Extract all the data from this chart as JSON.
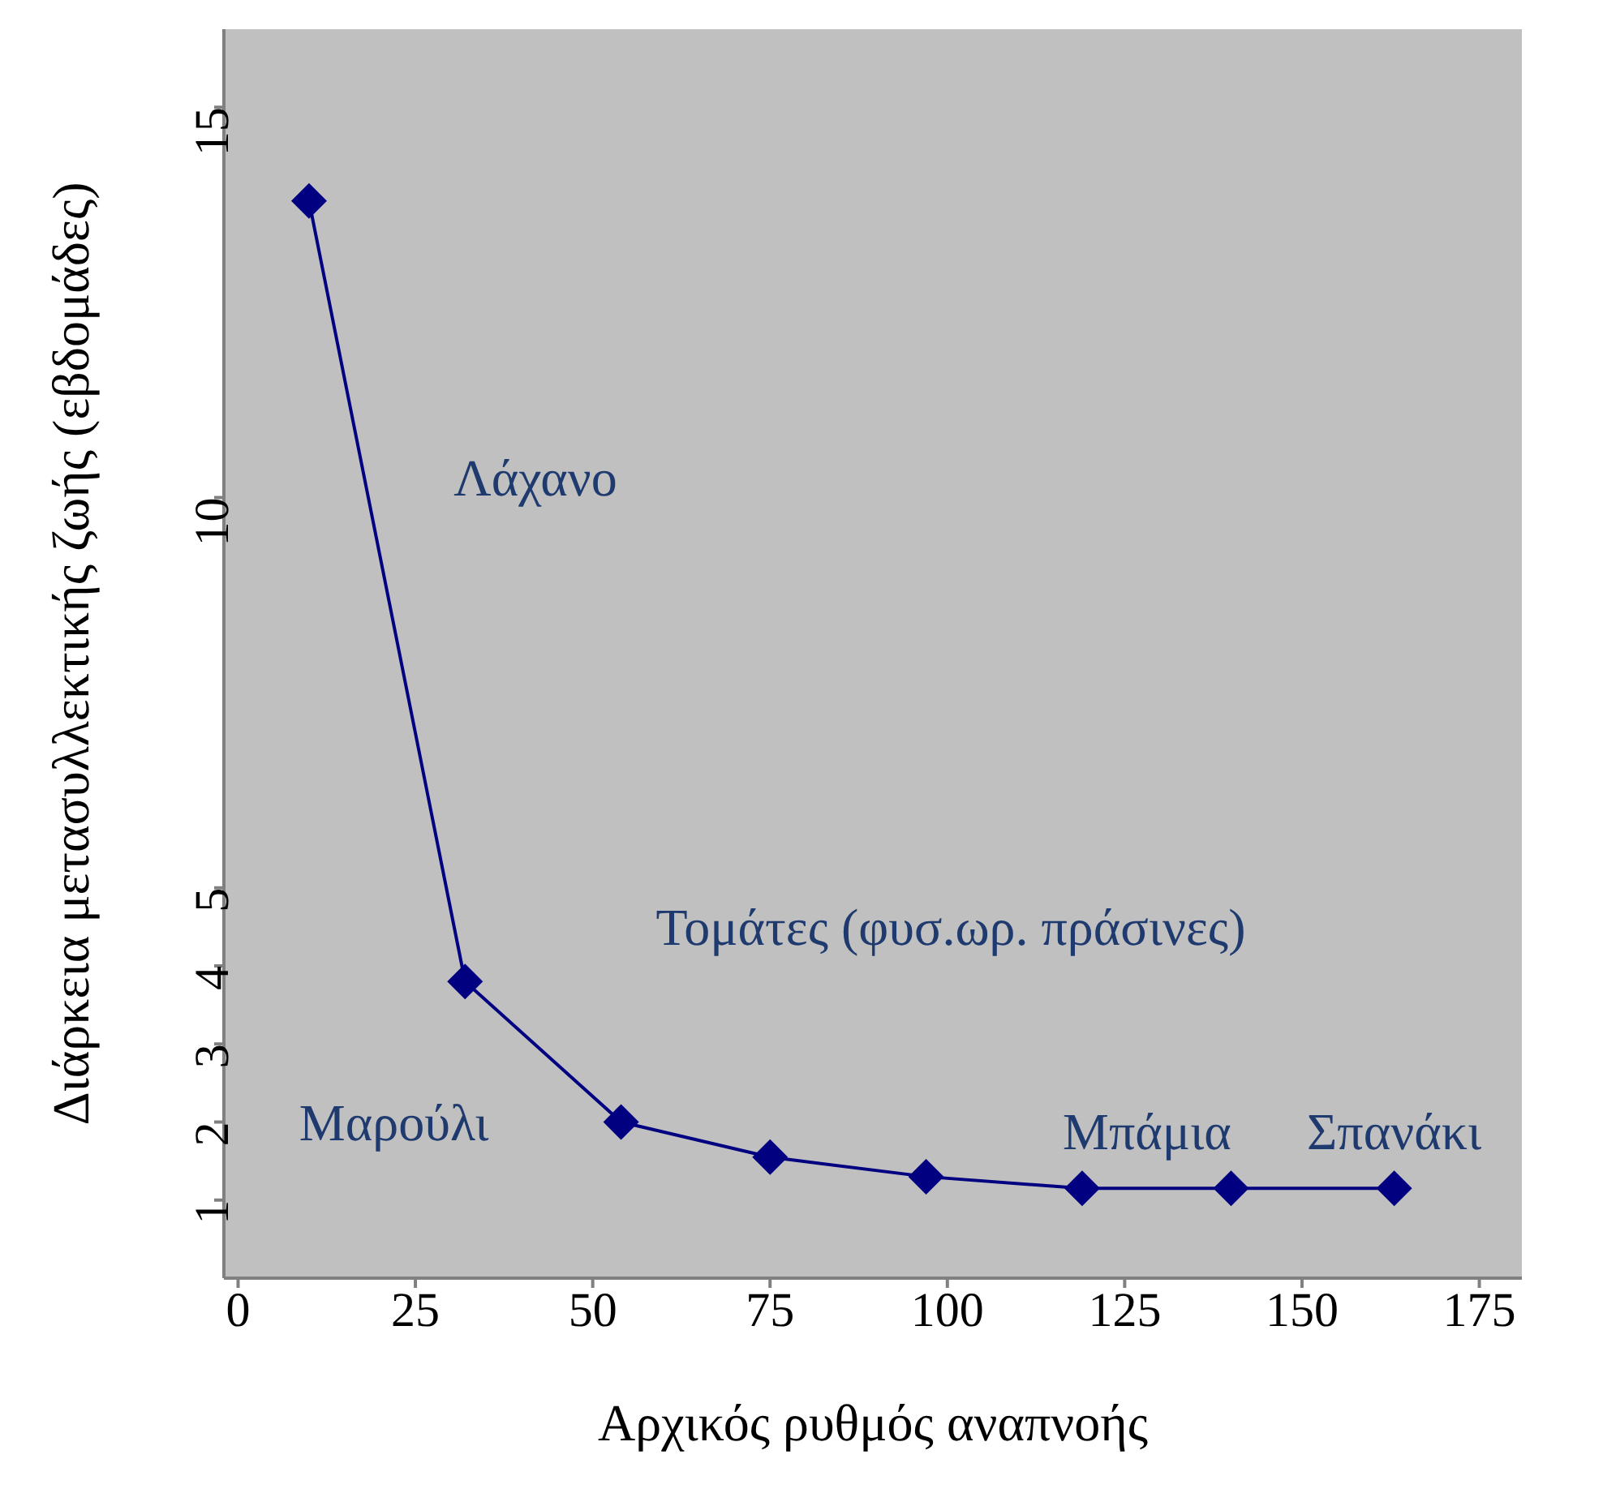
{
  "chart_data": {
    "type": "line",
    "xlabel": "Αρχικός ρυθμός αναπνοής",
    "ylabel": "Διάρκεια μετασυλλεκτικής ζωής (εβδομάδες)",
    "x": [
      10,
      32,
      54,
      75,
      97,
      119,
      140,
      163
    ],
    "series": [
      {
        "color": "#000080",
        "values": [
          13.8,
          3.8,
          2.0,
          1.55,
          1.3,
          1.15,
          1.15,
          1.15
        ]
      }
    ],
    "xlim": [
      -2,
      181
    ],
    "xticks": [
      0,
      25,
      50,
      75,
      100,
      125,
      150,
      175
    ],
    "ylim": [
      0,
      16
    ],
    "yticks": [
      1,
      2,
      3,
      4,
      5,
      10,
      15
    ],
    "marker": "diamond",
    "line_style": "solid",
    "grid": false,
    "legend": false,
    "annotations": [
      "Λάχανο",
      "Τομάτες (φυσ.ωρ. πράσινες)",
      {
        "text": "Μαρούλι",
        "x": 54,
        "y": 2.0
      },
      {
        "text": "Μπάμια",
        "x": 119,
        "y": 1.15
      },
      {
        "text": "Σπανάκι",
        "x": 163,
        "y": 1.15
      }
    ]
  }
}
